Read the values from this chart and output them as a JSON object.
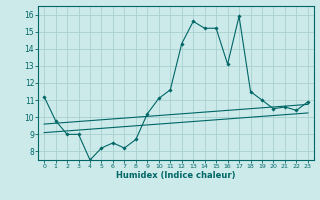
{
  "title": "",
  "xlabel": "Humidex (Indice chaleur)",
  "bg_color": "#cceaea",
  "grid_color": "#aad0d0",
  "line_color": "#006666",
  "xlim": [
    -0.5,
    23.5
  ],
  "ylim": [
    7.5,
    16.5
  ],
  "xticks": [
    0,
    1,
    2,
    3,
    4,
    5,
    6,
    7,
    8,
    9,
    10,
    11,
    12,
    13,
    14,
    15,
    16,
    17,
    18,
    19,
    20,
    21,
    22,
    23
  ],
  "yticks": [
    8,
    9,
    10,
    11,
    12,
    13,
    14,
    15,
    16
  ],
  "line1_x": [
    0,
    1,
    2,
    3,
    4,
    5,
    6,
    7,
    8,
    9,
    10,
    11,
    12,
    13,
    14,
    15,
    16,
    17,
    18,
    19,
    20,
    21,
    22,
    23
  ],
  "line1_y": [
    11.2,
    9.8,
    9.0,
    9.0,
    7.5,
    8.2,
    8.5,
    8.2,
    8.7,
    10.2,
    11.1,
    11.6,
    14.3,
    15.6,
    15.2,
    15.2,
    13.1,
    15.9,
    11.5,
    11.0,
    10.5,
    10.6,
    10.4,
    10.9
  ],
  "line2_x": [
    0,
    1,
    2,
    3,
    4,
    5,
    6,
    7,
    8,
    9,
    10,
    11,
    12,
    13,
    14,
    15,
    16,
    17,
    18,
    19,
    20,
    21,
    22,
    23
  ],
  "line2_y": [
    9.6,
    9.65,
    9.7,
    9.75,
    9.8,
    9.85,
    9.9,
    9.95,
    10.0,
    10.05,
    10.1,
    10.15,
    10.2,
    10.25,
    10.3,
    10.35,
    10.4,
    10.45,
    10.5,
    10.55,
    10.6,
    10.65,
    10.7,
    10.75
  ],
  "line3_x": [
    0,
    1,
    2,
    3,
    4,
    5,
    6,
    7,
    8,
    9,
    10,
    11,
    12,
    13,
    14,
    15,
    16,
    17,
    18,
    19,
    20,
    21,
    22,
    23
  ],
  "line3_y": [
    9.1,
    9.15,
    9.2,
    9.25,
    9.3,
    9.35,
    9.4,
    9.45,
    9.5,
    9.55,
    9.6,
    9.65,
    9.7,
    9.75,
    9.8,
    9.85,
    9.9,
    9.95,
    10.0,
    10.05,
    10.1,
    10.15,
    10.2,
    10.25
  ]
}
